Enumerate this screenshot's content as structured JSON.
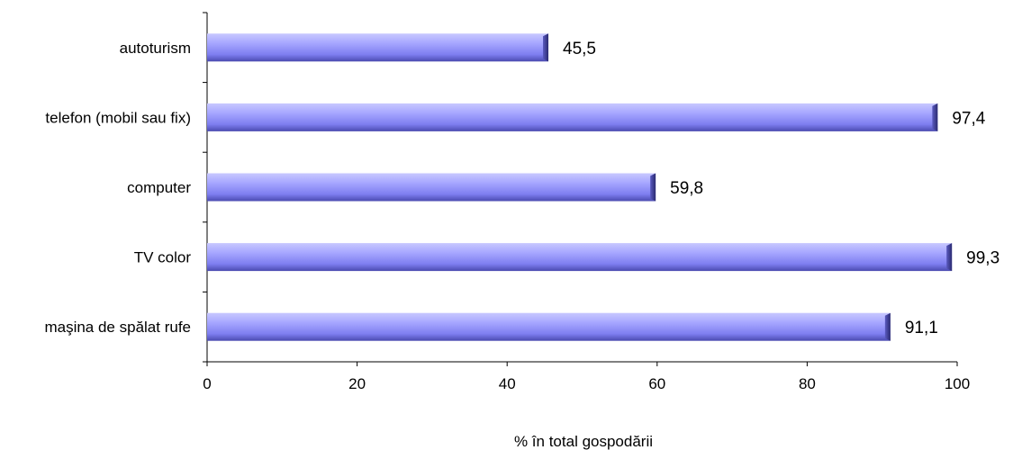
{
  "chart_data": {
    "type": "bar",
    "orientation": "horizontal",
    "categories": [
      "autoturism",
      "telefon (mobil sau fix)",
      "computer",
      "TV color",
      "maşina de spălat rufe"
    ],
    "values": [
      45.5,
      97.4,
      59.8,
      99.3,
      91.1
    ],
    "value_labels": [
      "45,5",
      "97,4",
      "59,8",
      "99,3",
      "91,1"
    ],
    "xlabel": "% în total gospodării",
    "ylabel": "",
    "title": "",
    "xlim": [
      0,
      100
    ],
    "xticks": [
      0,
      20,
      40,
      60,
      80,
      100
    ],
    "bar_color": "#9999ff",
    "grid": false,
    "legend": "none"
  }
}
